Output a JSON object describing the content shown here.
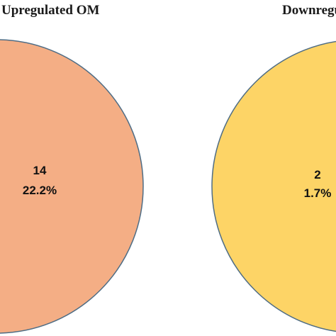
{
  "venn": {
    "sets": [
      {
        "title": "Upregulated OM",
        "count": "14",
        "percent": "22.2%",
        "fill": "#F4AE85",
        "stroke": "#4F6D85"
      },
      {
        "title": "Downregu",
        "count": "2",
        "percent": "1.7%",
        "fill": "#FDD466",
        "stroke": "#4F6D85"
      }
    ]
  }
}
